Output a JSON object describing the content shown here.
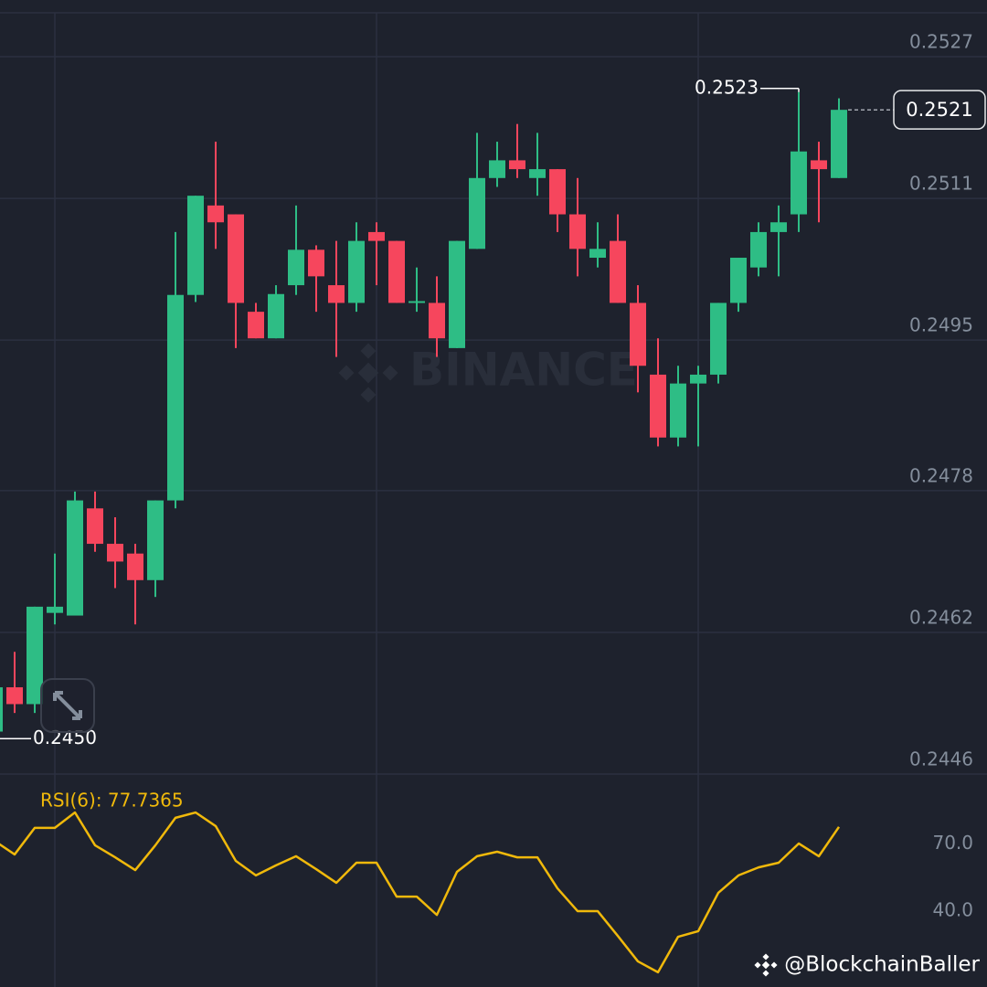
{
  "chart_data": [
    {
      "type": "candlestick",
      "open": [
        0.24508,
        0.24558,
        0.24539,
        0.24642,
        0.24639,
        0.2476,
        0.2472,
        0.24709,
        0.24679,
        0.24769,
        0.25001,
        0.25102,
        0.25092,
        0.24982,
        0.24952,
        0.25012,
        0.25052,
        0.25012,
        0.24992,
        0.25072,
        0.25062,
        0.24992,
        0.24992,
        0.24941,
        0.25053,
        0.25133,
        0.25153,
        0.25133,
        0.25143,
        0.25092,
        0.25043,
        0.25062,
        0.24992,
        0.24911,
        0.2484,
        0.24901,
        0.24911,
        0.24992,
        0.25032,
        0.25072,
        0.25092,
        0.25153,
        0.25133
      ],
      "high": [
        0.24558,
        0.24598,
        0.24649,
        0.24709,
        0.24779,
        0.24779,
        0.2475,
        0.2472,
        0.24769,
        0.25072,
        0.25113,
        0.25174,
        0.25092,
        0.24992,
        0.25012,
        0.25102,
        0.25057,
        0.25062,
        0.25083,
        0.25083,
        0.25062,
        0.25032,
        0.25022,
        0.25062,
        0.25184,
        0.25174,
        0.25194,
        0.25184,
        0.25143,
        0.25133,
        0.25083,
        0.25092,
        0.25012,
        0.24952,
        0.24921,
        0.24921,
        0.24992,
        0.25043,
        0.25083,
        0.25102,
        0.2523,
        0.25174,
        0.25223
      ],
      "low": [
        0.245,
        0.24529,
        0.24529,
        0.24629,
        0.24639,
        0.24711,
        0.2467,
        0.24629,
        0.2466,
        0.2476,
        0.24993,
        0.25053,
        0.24941,
        0.24952,
        0.24952,
        0.25001,
        0.24982,
        0.24931,
        0.24982,
        0.25012,
        0.24992,
        0.24982,
        0.24931,
        0.24941,
        0.25053,
        0.25123,
        0.25133,
        0.25113,
        0.25072,
        0.25022,
        0.25032,
        0.24992,
        0.24891,
        0.2483,
        0.2483,
        0.2483,
        0.24901,
        0.24982,
        0.25022,
        0.25022,
        0.25072,
        0.25083,
        0.25133
      ],
      "close": [
        0.24558,
        0.24539,
        0.24649,
        0.24649,
        0.24769,
        0.2472,
        0.247,
        0.24679,
        0.24769,
        0.25001,
        0.25113,
        0.25083,
        0.24992,
        0.24952,
        0.25002,
        0.25052,
        0.25022,
        0.24992,
        0.25062,
        0.25062,
        0.24992,
        0.24994,
        0.24952,
        0.25062,
        0.25133,
        0.25153,
        0.25143,
        0.25143,
        0.25092,
        0.25053,
        0.25053,
        0.24992,
        0.24921,
        0.2484,
        0.24901,
        0.24911,
        0.24992,
        0.25043,
        0.25072,
        0.25083,
        0.25163,
        0.25143,
        0.2521
      ],
      "up_color": "#2ebd85",
      "down_color": "#f6465d",
      "ylim": [
        0.24459,
        0.25334
      ],
      "yticks": [
        0.2527,
        0.2511,
        0.2495,
        0.2478,
        0.2462,
        0.2446
      ],
      "grid": true,
      "high_label": "0.2523",
      "low_label": "0.2450",
      "last_label": "0.2521"
    },
    {
      "type": "line",
      "title": "RSI(6): 77.7365",
      "color": "#f0b90b",
      "values": [
        71.5,
        65.4,
        77.3,
        77.3,
        84.2,
        69.5,
        64.1,
        58.4,
        69.5,
        81.8,
        84.2,
        78.1,
        62.5,
        56.0,
        60.5,
        64.6,
        58.8,
        52.7,
        61.7,
        61.7,
        46.5,
        46.5,
        38.3,
        57.6,
        64.6,
        66.6,
        64.1,
        64.1,
        50.2,
        40.0,
        40.0,
        28.9,
        17.5,
        12.6,
        28.5,
        31.0,
        48.2,
        56.0,
        59.6,
        61.7,
        70.3,
        64.6,
        77.7365
      ],
      "ylim": [
        6,
        101
      ],
      "yticks": [
        {
          "value": 70,
          "label": "70.0"
        },
        {
          "value": 40,
          "label": "40.0"
        }
      ]
    }
  ],
  "watermark": "BINANCE",
  "credit": "@BlockchainBaller"
}
